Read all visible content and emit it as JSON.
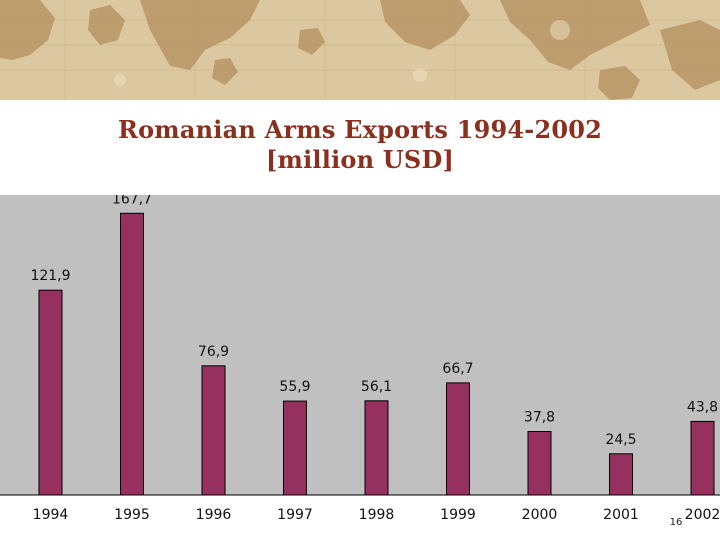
{
  "slide": {
    "title_line_1": "Romanian Arms Exports 1994-2002",
    "title_line_2": "[million USD]",
    "slide_number": "16"
  },
  "colors": {
    "bar": "#96305e",
    "plot_background": "#c0c0c0",
    "title": "#8b2f1e",
    "banner": "#d9c39a"
  },
  "chart_data": {
    "type": "bar",
    "title": "Romanian Arms Exports 1994-2002 [million USD]",
    "categories": [
      "1994",
      "1995",
      "1996",
      "1997",
      "1998",
      "1999",
      "2000",
      "2001",
      "2002"
    ],
    "values": [
      121.9,
      167.7,
      76.9,
      55.9,
      56.1,
      66.7,
      37.8,
      24.5,
      43.8
    ],
    "value_labels": [
      "121,9",
      "167,7",
      "76,9",
      "55,9",
      "56,1",
      "66,7",
      "37,8",
      "24,5",
      "43,8"
    ],
    "xlabel": "",
    "ylabel": "",
    "ylim": [
      0,
      180
    ],
    "grid": false,
    "legend": "none"
  }
}
